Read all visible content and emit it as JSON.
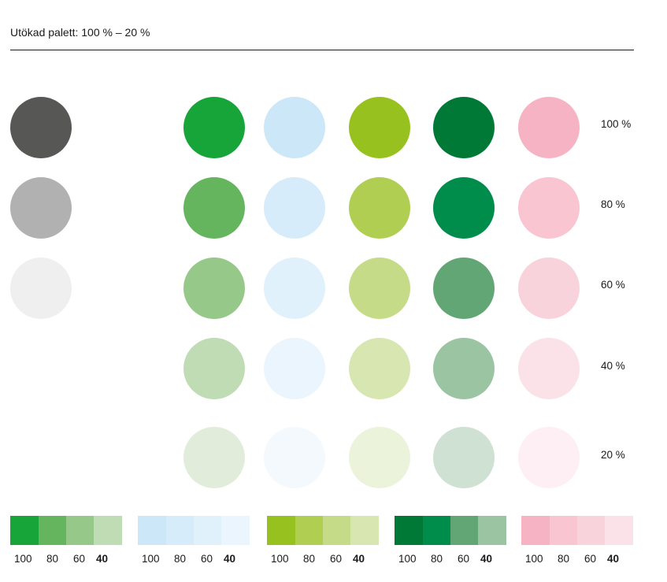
{
  "title": "Utökad palett: 100 % – 20 %",
  "row_labels": [
    "100 %",
    "80 %",
    "60 %",
    "40 %",
    "20 %"
  ],
  "swatch_labels": [
    "100",
    "80",
    "60",
    "40"
  ],
  "colors": {
    "gray": [
      "#575756",
      "#b1b1b1",
      "#efefef"
    ],
    "green": [
      "#17a539",
      "#65b55f",
      "#96c889",
      "#bfdcb5",
      "#e1edda"
    ],
    "light_blue": [
      "#cbe7f8",
      "#d6ecfa",
      "#e0f1fb",
      "#eaf5fd",
      "#f4f9fe"
    ],
    "lime": [
      "#96c11f",
      "#b0ce52",
      "#c5db87",
      "#d8e6b2",
      "#ecf3db"
    ],
    "dark_green": [
      "#007936",
      "#008c4a",
      "#63a675",
      "#9bc5a2",
      "#cfe1d2"
    ],
    "pink": [
      "#f5b3c4",
      "#f8c5d1",
      "#f9d3dc",
      "#fbe1e8",
      "#fdeff3"
    ]
  }
}
